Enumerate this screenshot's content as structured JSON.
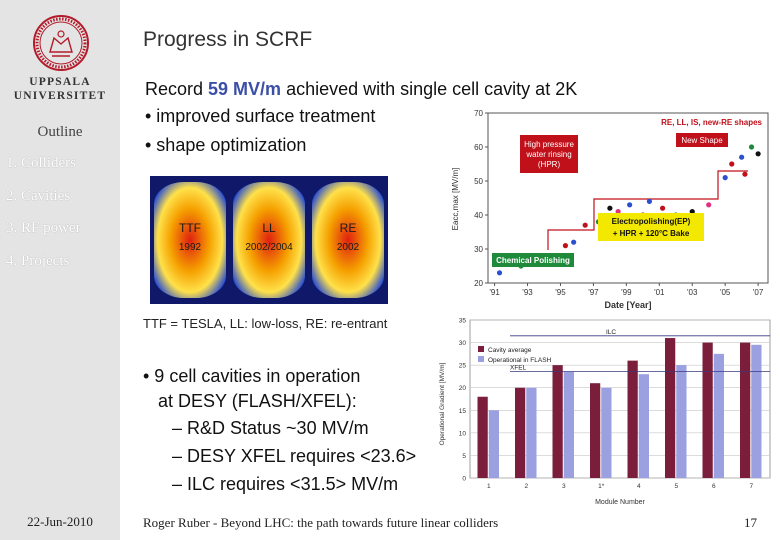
{
  "sidebar": {
    "university_line1": "UPPSALA",
    "university_line2": "UNIVERSITET",
    "outline_title": "Outline",
    "items": [
      {
        "label": "1. Colliders"
      },
      {
        "label": "2. Cavities"
      },
      {
        "label": "3. RF power"
      },
      {
        "label": "4. Projects"
      }
    ],
    "date": "22-Jun-2010"
  },
  "slide": {
    "title": "Progress in SCRF",
    "record_prefix": "Record ",
    "record_value": "59 MV/m",
    "record_suffix": " achieved with single cell cavity at 2K",
    "bullets": [
      "• improved surface treatment",
      "• shape optimization"
    ],
    "caption": "TTF = TESLA, LL: low-loss, RE: re-entrant",
    "bullet2": [
      "• 9 cell cavities in operation",
      "at DESY (FLASH/XFEL):",
      "– R&D Status ~30 MV/m",
      "– DESY XFEL requires <23.6>",
      "– ILC requires <31.5> MV/m"
    ],
    "footer": "Roger Ruber - Beyond LHC: the path towards future linear colliders",
    "page_number": "17"
  },
  "cavity_image": {
    "labels": [
      "TTF",
      "LL",
      "RE"
    ],
    "years": [
      "1992",
      "2002/2004",
      "2002"
    ],
    "colors": {
      "hot": "#e02010",
      "warm": "#f5a000",
      "cool": "#2a4fd0",
      "background": "#10186a"
    }
  },
  "chart_data": [
    {
      "type": "scatter",
      "xlabel": "Date [Year]",
      "ylabel": "Eacc,max [MV/m]",
      "ylim": [
        20,
        70
      ],
      "yticks": [
        "20",
        "30",
        "40",
        "50",
        "60",
        "70"
      ],
      "xticks": [
        "'91",
        "'93",
        "'95",
        "'97",
        "'99",
        "'01",
        "'03",
        "'05",
        "'07"
      ],
      "x": [
        1991.3,
        1992,
        1992.6,
        1993.3,
        1994,
        1994.8,
        1995.3,
        1995.8,
        1996.5,
        1997.3,
        1998,
        1998.5,
        1999.2,
        2000,
        2000.4,
        2001.2,
        2002,
        2003,
        2004,
        2005,
        2005.4,
        2006,
        2006.2,
        2006.6,
        2007
      ],
      "y": [
        23,
        26,
        25,
        27,
        28,
        27,
        31,
        32,
        37,
        38,
        42,
        41,
        43,
        40,
        44,
        42,
        40,
        41,
        43,
        51,
        55,
        57,
        52,
        60,
        58
      ],
      "annotations": [
        {
          "text": "RE, LL, IS, new-RE shapes",
          "color": "#c0101a"
        },
        {
          "text": "High pressure",
          "color": "#ffffff"
        },
        {
          "text": "water rinsing",
          "color": "#ffffff"
        },
        {
          "text": "(HPR)",
          "color": "#ffffff"
        },
        {
          "text": "New Shape",
          "color": "#ffffff"
        },
        {
          "text": "Electropolishing(EP)",
          "color": "#111111"
        },
        {
          "text": "+ HPR + 120°C Bake",
          "color": "#111111"
        },
        {
          "text": "Chemical Polishing",
          "color": "#ffffff"
        }
      ]
    },
    {
      "type": "bar",
      "categories": [
        "1",
        "2",
        "3",
        "1*",
        "4",
        "5",
        "6",
        "7"
      ],
      "series": [
        {
          "name": "Cavity average",
          "values": [
            18,
            20,
            25,
            21,
            26,
            31,
            30,
            30
          ],
          "color": "#7a1e3c"
        },
        {
          "name": "Operational in FLASH",
          "values": [
            15,
            20,
            23.5,
            20,
            23,
            25,
            27.5,
            29.5
          ],
          "color": "#9aa0e0"
        }
      ],
      "xlabel": "Module Number",
      "ylabel": "Operational Gradient [MV/m]",
      "ylim": [
        0,
        35
      ],
      "yticks": [
        "0",
        "5",
        "10",
        "15",
        "20",
        "25",
        "30",
        "35"
      ],
      "reference_lines": [
        {
          "label": "ILC",
          "value": 31.5
        },
        {
          "label": "XFEL",
          "value": 23.6
        }
      ]
    }
  ]
}
